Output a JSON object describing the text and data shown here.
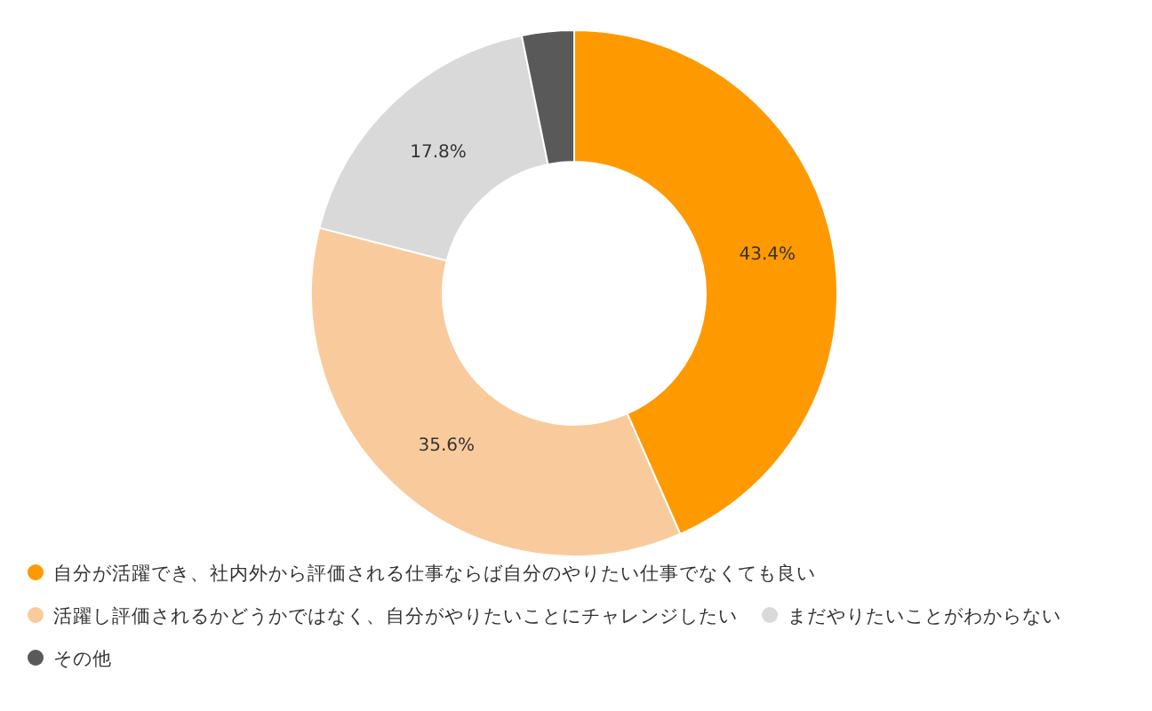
{
  "chart_data": {
    "type": "donut",
    "categories": [
      "自分が活躍でき、社内外から評価される仕事ならば自分のやりたい仕事でなくても良い",
      "活躍し評価されるかどうかではなく、自分がやりたいことにチャレンジしたい",
      "まだやりたいことがわからない",
      "その他"
    ],
    "values": [
      43.4,
      35.6,
      17.8,
      3.2
    ],
    "colors": [
      "#ff9900",
      "#f9cb9c",
      "#d9d9d9",
      "#595959"
    ],
    "value_labels": [
      "43.4%",
      "35.6%",
      "17.8%",
      null
    ],
    "legend": "bottom"
  }
}
